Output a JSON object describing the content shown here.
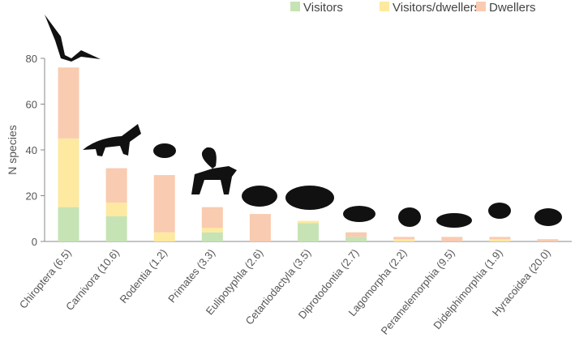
{
  "chart_data": {
    "type": "stacked_bar",
    "y_label": "N species",
    "categories": [
      "Chiroptera (6.5)",
      "Carnivora (10.6)",
      "Rodentia (1.2)",
      "Primates (3.3)",
      "Eulipotyphla (2.6)",
      "Cetartiodactyla (3.5)",
      "Diprotodontia (2.7)",
      "Lagomorpha (2.2)",
      "Peramelemorphia (9.5)",
      "Didelphimorphia (1.9)",
      "Hyracoidea (20.0)"
    ],
    "series": [
      {
        "name": "Visitors",
        "color": "#c6e3b5",
        "values": [
          15,
          11,
          0,
          4,
          0,
          8,
          2,
          0,
          0,
          0,
          0
        ]
      },
      {
        "name": "Visitors/dwellers",
        "color": "#fde9a0",
        "values": [
          30,
          6,
          4,
          2,
          0,
          1,
          0,
          1,
          0,
          1,
          0
        ]
      },
      {
        "name": "Dwellers",
        "color": "#f9cbb0",
        "values": [
          31,
          15,
          25,
          9,
          12,
          0,
          2,
          1,
          2,
          1,
          1
        ]
      }
    ],
    "ylim": [
      0,
      80
    ],
    "yticks": [
      0,
      20,
      40,
      60,
      80
    ]
  }
}
